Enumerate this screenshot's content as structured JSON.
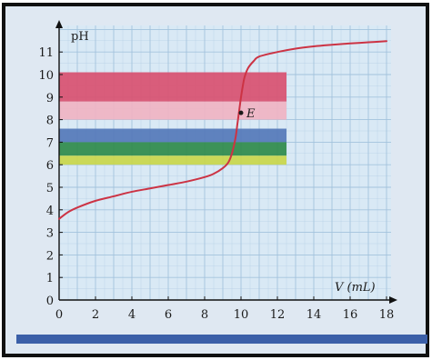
{
  "chart_data": {
    "type": "line",
    "title": "",
    "xlabel": "V (mL)",
    "ylabel": "pH",
    "xlim": [
      0,
      18
    ],
    "ylim": [
      0,
      11.5
    ],
    "x_ticks": [
      "0",
      "2",
      "4",
      "6",
      "8",
      "10",
      "12",
      "14",
      "16",
      "18"
    ],
    "y_ticks": [
      "0",
      "1",
      "2",
      "3",
      "4",
      "5",
      "6",
      "7",
      "8",
      "9",
      "10",
      "11"
    ],
    "grid": true,
    "series": [
      {
        "x": [
          0,
          0.5,
          1,
          2,
          3,
          4,
          5,
          6,
          7,
          8,
          8.5,
          9,
          9.3,
          9.5,
          9.7,
          9.8,
          9.9,
          10.0,
          10.1,
          10.2,
          10.4,
          10.7,
          11,
          12,
          13,
          14,
          15,
          16,
          17,
          18
        ],
        "y": [
          3.6,
          3.9,
          4.1,
          4.4,
          4.6,
          4.8,
          4.95,
          5.1,
          5.25,
          5.45,
          5.6,
          5.85,
          6.1,
          6.5,
          7.2,
          7.8,
          8.4,
          9.0,
          9.5,
          9.9,
          10.3,
          10.6,
          10.8,
          11.0,
          11.15,
          11.25,
          11.32,
          11.38,
          11.43,
          11.48
        ]
      }
    ],
    "indicator_bands": [
      {
        "x_range": [
          0,
          12.5
        ],
        "y_range": [
          8.8,
          10.1
        ],
        "color": "#d95070"
      },
      {
        "x_range": [
          0,
          12.5
        ],
        "y_range": [
          8.0,
          8.8
        ],
        "color": "#f0b3c2"
      },
      {
        "x_range": [
          0,
          12.5
        ],
        "y_range": [
          7.0,
          7.6
        ],
        "color": "#5578b8"
      },
      {
        "x_range": [
          0,
          12.5
        ],
        "y_range": [
          6.4,
          7.0
        ],
        "color": "#2f8a4a"
      },
      {
        "x_range": [
          0,
          12.5
        ],
        "y_range": [
          6.0,
          6.4
        ],
        "color": "#c9d64a"
      }
    ],
    "annotations": [
      {
        "label": "E",
        "x": 10,
        "y": 8.3
      }
    ],
    "colors": {
      "curve": "#cc3344",
      "plot_bg": "#d9e9f5",
      "grid": "#9fc0db",
      "frame": "#111111",
      "bottom_bar": "#3b5fa8"
    }
  }
}
